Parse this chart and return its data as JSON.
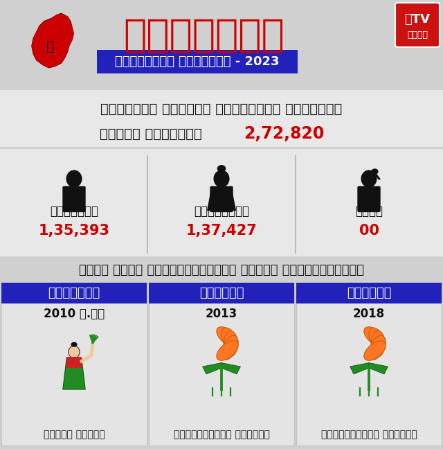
{
  "bg_color": "#d0d0d0",
  "header_bg": "#cccccc",
  "title_kannada": "ಕರ್ನಾಟಕ",
  "subtitle_kannada": "ವಿಧಾನಸಭೆ ಚುನಾವಣೆ - 2023",
  "constituency_line1": "ಕಲಬುರಗಿ ದಕ್ಶಿಣ ವಿಧಾನಸಭಾ ಕ್ಷೇತ್ರ",
  "total_voters_label": "ಒಟ್ಟು ಮತದಾರರು",
  "total_voters_value": "2,72,820",
  "male_label": "ಪುರುಷರು",
  "male_value": "1,35,393",
  "female_label": "ಮಹಿಳೆಯರು",
  "female_value": "1,37,427",
  "other_label": "ಇತರೆ",
  "other_value": "00",
  "prev_winners_title": "ಕಳೆದ ಮೂರು ಚುನಾವಣೆಯಲ್ಲಿ ಗೆದ್ದ ಅಭ್ಯರ್ಥಿಗಳು",
  "party1": "ಜೆಡಿಎಸ್",
  "year1": "2010 ಉ.ಚು",
  "candidate1": "ಅರುಣಾ ರೇವೂರ",
  "party2": "బಿಜೆಪಿ",
  "year2": "2013",
  "candidate2": "ದತ್ತಾತ್ರೇಯ ರೇವೂರ್",
  "party3": "బಿಜೆಪಿ",
  "year3": "2018",
  "candidate3": "ದತ್ತಾತ್ರೇಯ ರೇವೂರ್",
  "party_bg_color": "#2222bb",
  "red_color": "#cc0000",
  "dark_text": "#111111",
  "white": "#ffffff",
  "section_bg": "#e8e8e8",
  "divider_color": "#bbbbbb"
}
